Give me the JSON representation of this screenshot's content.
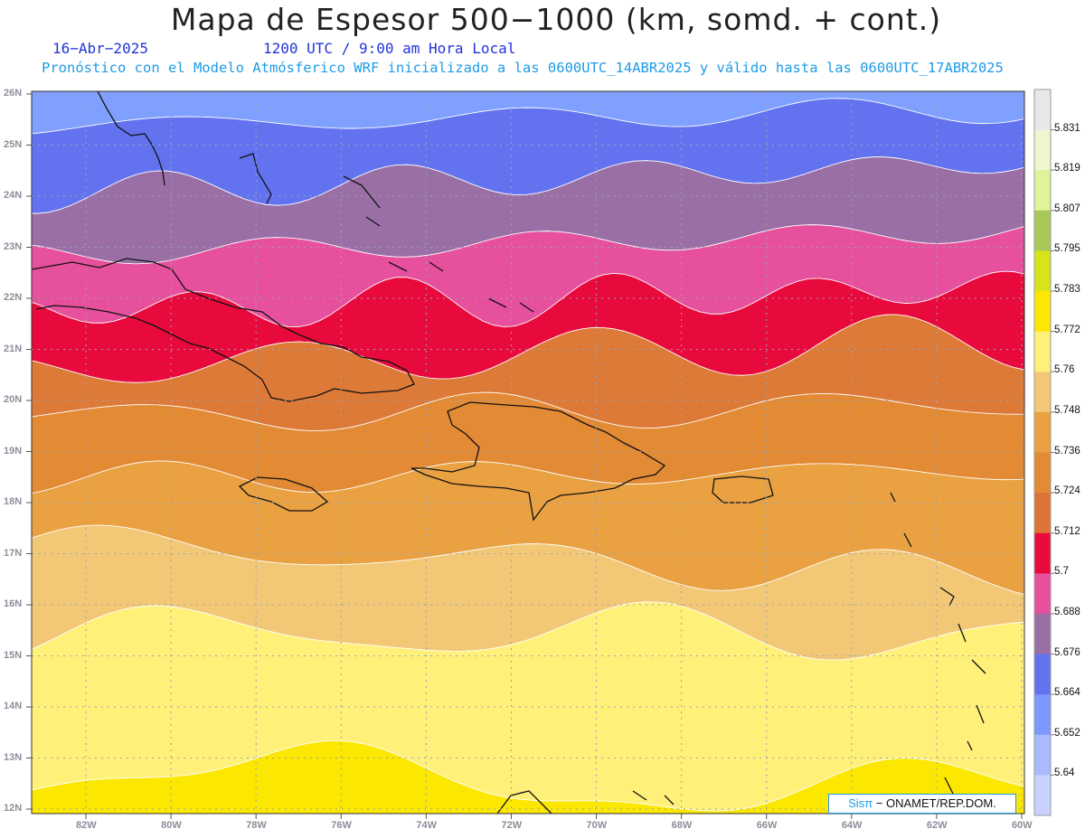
{
  "title": "Mapa de Espesor 500−1000 (km, somd. + cont.)",
  "date": "16−Abr−2025",
  "time": "1200 UTC / 9:00 am Hora Local",
  "forecast_note": "Pronóstico con el Modelo Atmósferico WRF inicializado a las 0600UTC_14ABR2025 y válido hasta las  0600UTC_17ABR2025",
  "credit": {
    "brand": "Sisπ",
    "text": "− ONAMET/REP.DOM."
  },
  "lat_ticks": [
    "26N",
    "25N",
    "24N",
    "23N",
    "22N",
    "21N",
    "20N",
    "19N",
    "18N",
    "17N",
    "16N",
    "15N",
    "14N",
    "13N",
    "12N"
  ],
  "lon_ticks": [
    "82W",
    "80W",
    "78W",
    "76W",
    "74W",
    "72W",
    "70W",
    "68W",
    "66W",
    "64W",
    "62W",
    "60W"
  ],
  "colorbar": {
    "labels": [
      "5.831",
      "5.819",
      "5.807",
      "5.795",
      "5.783",
      "5.772",
      "5.76",
      "5.748",
      "5.736",
      "5.724",
      "5.712",
      "5.7",
      "5.688",
      "5.676",
      "5.664",
      "5.652",
      "5.64"
    ],
    "colors": [
      "#e8e8e8",
      "#eef6d0",
      "#e0f29a",
      "#a8c85a",
      "#d6e41c",
      "#fbe700",
      "#fff07a",
      "#f2c877",
      "#e9a142",
      "#e38a35",
      "#dd7436",
      "#e80a3c",
      "#e6509c",
      "#9a6fa6",
      "#6373ef",
      "#7d98ff",
      "#a9baff",
      "#c9d2ff"
    ]
  },
  "bands": {
    "colors": [
      "#80a0ff",
      "#6373ef",
      "#9a6fa6",
      "#e6509c",
      "#e80a3c",
      "#dd7a38",
      "#e38a35",
      "#e9a142",
      "#f2c877",
      "#fff07a",
      "#fbe700",
      "#d6e41c"
    ]
  }
}
